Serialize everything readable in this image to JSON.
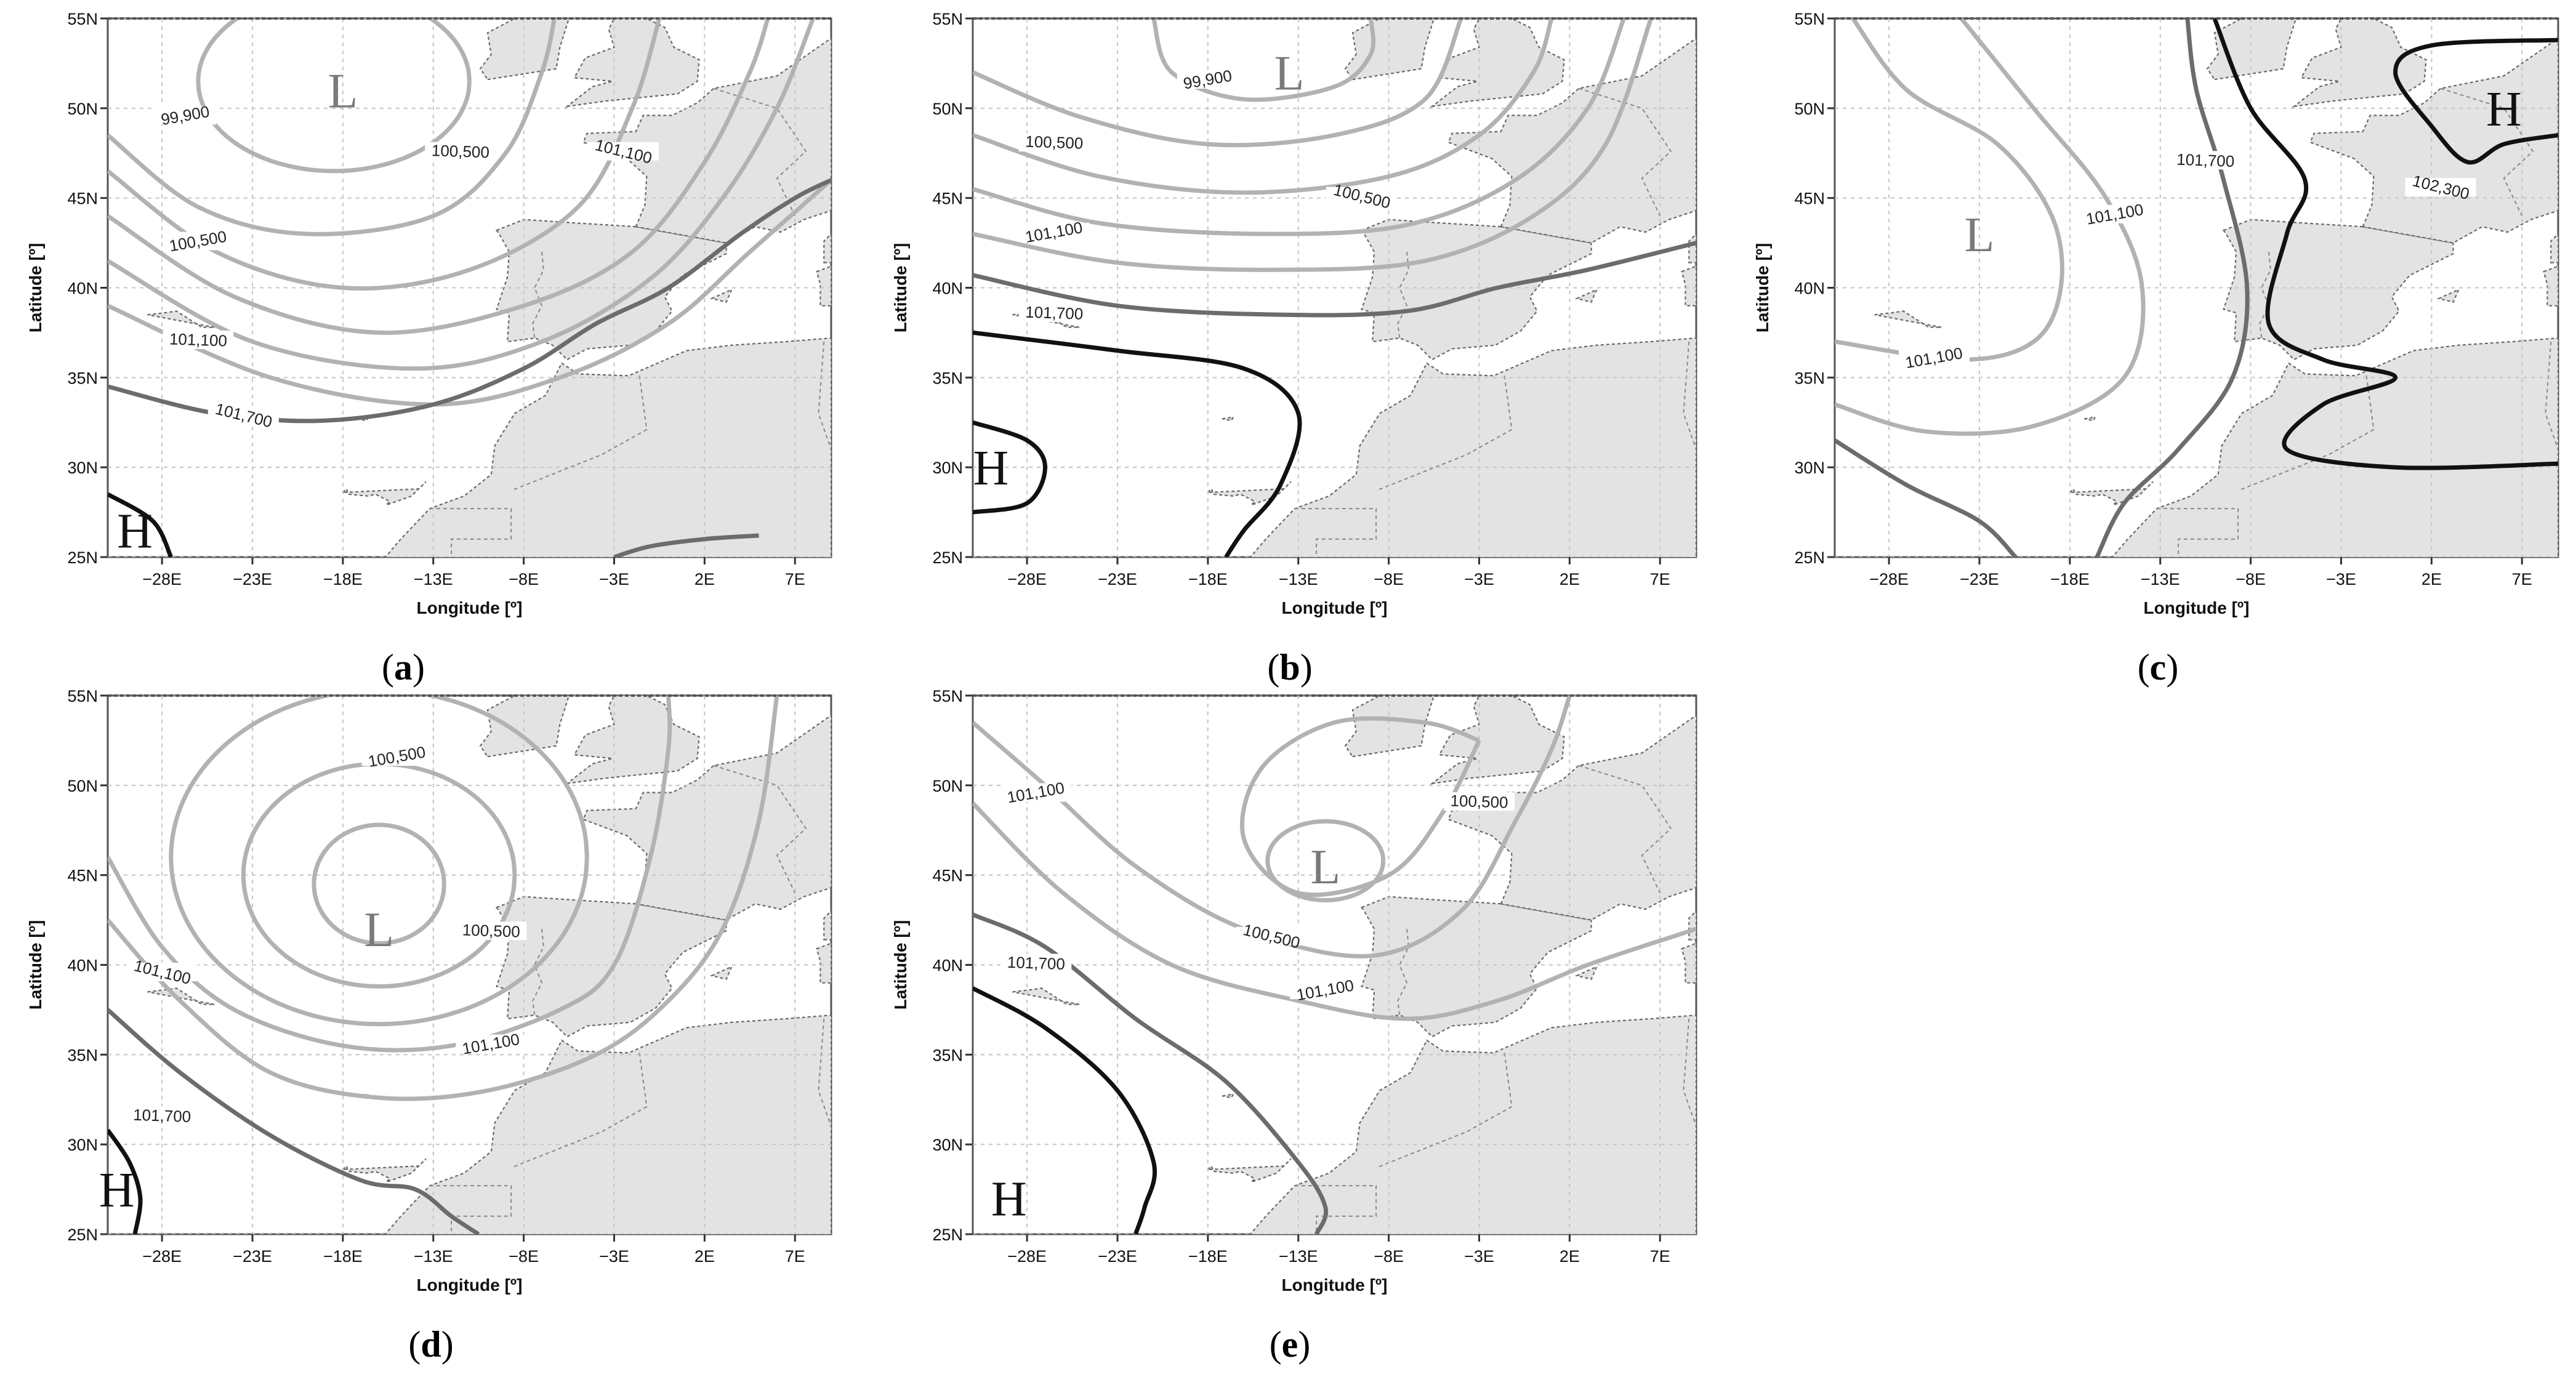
{
  "axes": {
    "xlabel": "Longitude [º]",
    "ylabel": "Latitude [º]",
    "x_ticks": [
      "−28E",
      "−23E",
      "−18E",
      "−13E",
      "−8E",
      "−3E",
      "2E",
      "7E"
    ],
    "x_tick_values": [
      -28,
      -23,
      -18,
      -13,
      -8,
      -3,
      2,
      7
    ],
    "y_ticks": [
      "25N",
      "30N",
      "35N",
      "40N",
      "45N",
      "50N",
      "55N"
    ],
    "y_tick_values": [
      25,
      30,
      35,
      40,
      45,
      50,
      55
    ],
    "lon_range": [
      -31,
      9
    ],
    "lat_range": [
      25,
      55
    ]
  },
  "colors": {
    "land": "#e3e3e3",
    "isobar_light": "#b2b2b2",
    "isobar_mid": "#6c6c6c",
    "isobar_dark": "#111111"
  },
  "panels": [
    {
      "id": "a",
      "caption": "a",
      "centers": [
        {
          "symbol": "L",
          "lon": -18,
          "lat": 51
        },
        {
          "symbol": "H",
          "lon": -29.5,
          "lat": 26.5
        }
      ],
      "isobar_labels": [
        {
          "text": "99,900",
          "lon": -26.7,
          "lat": 49.5
        },
        {
          "text": "100,500",
          "lon": -11.5,
          "lat": 47.5
        },
        {
          "text": "101,100",
          "lon": -2.5,
          "lat": 47.5
        },
        {
          "text": "100,500",
          "lon": -26,
          "lat": 42.5
        },
        {
          "text": "101,100",
          "lon": -26,
          "lat": 37
        },
        {
          "text": "101,700",
          "lon": -23.5,
          "lat": 32.8
        }
      ]
    },
    {
      "id": "b",
      "caption": "b",
      "centers": [
        {
          "symbol": "L",
          "lon": -13.5,
          "lat": 52
        },
        {
          "symbol": "H",
          "lon": -30,
          "lat": 30
        }
      ],
      "isobar_labels": [
        {
          "text": "99,900",
          "lon": -18,
          "lat": 51.5
        },
        {
          "text": "100,500",
          "lon": -26.5,
          "lat": 48
        },
        {
          "text": "100,500",
          "lon": -9.5,
          "lat": 45
        },
        {
          "text": "101,100",
          "lon": -26.5,
          "lat": 43
        },
        {
          "text": "101,700",
          "lon": -26.5,
          "lat": 38.5
        }
      ]
    },
    {
      "id": "c",
      "caption": "c",
      "centers": [
        {
          "symbol": "L",
          "lon": -23,
          "lat": 43
        },
        {
          "symbol": "H",
          "lon": 6,
          "lat": 50
        }
      ],
      "isobar_labels": [
        {
          "text": "101,100",
          "lon": -15.5,
          "lat": 44
        },
        {
          "text": "101,700",
          "lon": -10.5,
          "lat": 47
        },
        {
          "text": "102,300",
          "lon": 2.5,
          "lat": 45.5
        },
        {
          "text": "101,100",
          "lon": -25.5,
          "lat": 36
        }
      ]
    },
    {
      "id": "d",
      "caption": "d",
      "centers": [
        {
          "symbol": "L",
          "lon": -16,
          "lat": 42
        },
        {
          "symbol": "H",
          "lon": -30.5,
          "lat": 27.5
        }
      ],
      "isobar_labels": [
        {
          "text": "100,500",
          "lon": -15,
          "lat": 51.5
        },
        {
          "text": "100,500",
          "lon": -9.8,
          "lat": 41.8
        },
        {
          "text": "101,100",
          "lon": -28,
          "lat": 39.5
        },
        {
          "text": "101,100",
          "lon": -9.8,
          "lat": 35.5
        },
        {
          "text": "101,700",
          "lon": -28,
          "lat": 31.5
        }
      ]
    },
    {
      "id": "e",
      "caption": "e",
      "centers": [
        {
          "symbol": "L",
          "lon": -11.5,
          "lat": 45.5
        },
        {
          "symbol": "H",
          "lon": -29,
          "lat": 27
        }
      ],
      "isobar_labels": [
        {
          "text": "101,100",
          "lon": -27.5,
          "lat": 49.5
        },
        {
          "text": "100,500",
          "lon": -3,
          "lat": 49
        },
        {
          "text": "100,500",
          "lon": -14.5,
          "lat": 41.5
        },
        {
          "text": "101,100",
          "lon": -11.5,
          "lat": 38.5
        },
        {
          "text": "101,700",
          "lon": -27.5,
          "lat": 40
        }
      ]
    }
  ]
}
